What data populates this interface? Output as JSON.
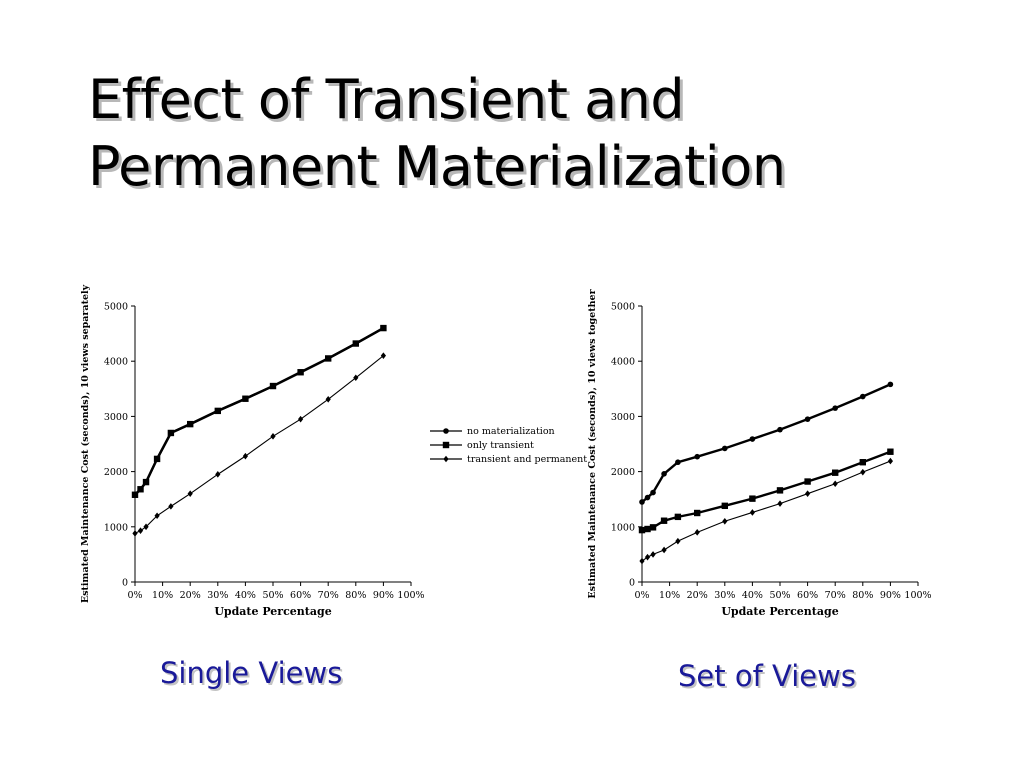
{
  "title": [
    "Effect of Transient and",
    "Permanent Materialization"
  ],
  "captions": {
    "left": "Single Views",
    "right": "Set of Views"
  },
  "legend": [
    "no materialization",
    "only transient",
    "transient and permanent"
  ],
  "chart_data": [
    {
      "type": "line",
      "title": "",
      "xlabel": "Update Percentage",
      "ylabel": "Estimated Maintenance Cost (seconds), 10 views separately",
      "xlim": [
        0,
        100
      ],
      "ylim": [
        0,
        5000
      ],
      "xticks": [
        "0%",
        "10%",
        "20%",
        "30%",
        "40%",
        "50%",
        "60%",
        "70%",
        "80%",
        "90%",
        "100%"
      ],
      "yticks": [
        "0",
        "1000",
        "2000",
        "3000",
        "4000",
        "5000"
      ],
      "legend_position": "right",
      "series": [
        {
          "name": "no materialization",
          "marker": "circle",
          "x": [
            0,
            2,
            4,
            8,
            13,
            20,
            30,
            40,
            50,
            60,
            70,
            80,
            90
          ],
          "y": [
            1580,
            1680,
            1810,
            2230,
            2700,
            2860,
            3100,
            3320,
            3550,
            3800,
            4050,
            4320,
            4600
          ]
        },
        {
          "name": "only transient",
          "marker": "square",
          "x": [
            0,
            2,
            4,
            8,
            13,
            20,
            30,
            40,
            50,
            60,
            70,
            80,
            90
          ],
          "y": [
            1580,
            1680,
            1810,
            2230,
            2700,
            2860,
            3100,
            3320,
            3550,
            3800,
            4050,
            4320,
            4600
          ]
        },
        {
          "name": "transient and permanent",
          "marker": "diamond",
          "x": [
            0,
            2,
            4,
            8,
            13,
            20,
            30,
            40,
            50,
            60,
            70,
            80,
            90
          ],
          "y": [
            880,
            930,
            1000,
            1200,
            1370,
            1600,
            1950,
            2280,
            2640,
            2950,
            3310,
            3700,
            4100
          ]
        }
      ]
    },
    {
      "type": "line",
      "title": "",
      "xlabel": "Update Percentage",
      "ylabel": "Estimated Maintenance Cost (seconds), 10 views together",
      "xlim": [
        0,
        100
      ],
      "ylim": [
        0,
        5000
      ],
      "xticks": [
        "0%",
        "10%",
        "20%",
        "30%",
        "40%",
        "50%",
        "60%",
        "70%",
        "80%",
        "90%",
        "100%"
      ],
      "yticks": [
        "0",
        "1000",
        "2000",
        "3000",
        "4000",
        "5000"
      ],
      "series": [
        {
          "name": "no materialization",
          "marker": "circle",
          "x": [
            0,
            2,
            4,
            8,
            13,
            20,
            30,
            40,
            50,
            60,
            70,
            80,
            90
          ],
          "y": [
            1450,
            1530,
            1620,
            1960,
            2170,
            2270,
            2420,
            2590,
            2760,
            2950,
            3150,
            3360,
            3580
          ]
        },
        {
          "name": "only transient",
          "marker": "square",
          "x": [
            0,
            2,
            4,
            8,
            13,
            20,
            30,
            40,
            50,
            60,
            70,
            80,
            90
          ],
          "y": [
            940,
            960,
            990,
            1110,
            1180,
            1250,
            1380,
            1510,
            1660,
            1820,
            1980,
            2170,
            2360
          ]
        },
        {
          "name": "transient and permanent",
          "marker": "diamond",
          "x": [
            0,
            2,
            4,
            8,
            13,
            20,
            30,
            40,
            50,
            60,
            70,
            80,
            90
          ],
          "y": [
            380,
            450,
            500,
            580,
            740,
            900,
            1100,
            1260,
            1420,
            1600,
            1780,
            1990,
            2190
          ]
        }
      ]
    }
  ]
}
